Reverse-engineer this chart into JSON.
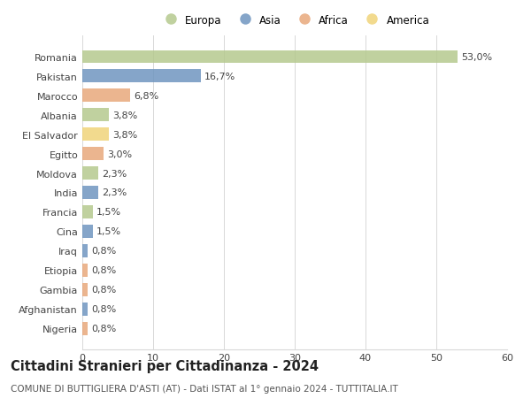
{
  "countries": [
    "Romania",
    "Pakistan",
    "Marocco",
    "Albania",
    "El Salvador",
    "Egitto",
    "Moldova",
    "India",
    "Francia",
    "Cina",
    "Iraq",
    "Etiopia",
    "Gambia",
    "Afghanistan",
    "Nigeria"
  ],
  "values": [
    53.0,
    16.7,
    6.8,
    3.8,
    3.8,
    3.0,
    2.3,
    2.3,
    1.5,
    1.5,
    0.8,
    0.8,
    0.8,
    0.8,
    0.8
  ],
  "labels": [
    "53,0%",
    "16,7%",
    "6,8%",
    "3,8%",
    "3,8%",
    "3,0%",
    "2,3%",
    "2,3%",
    "1,5%",
    "1,5%",
    "0,8%",
    "0,8%",
    "0,8%",
    "0,8%",
    "0,8%"
  ],
  "continents": [
    "Europa",
    "Asia",
    "Africa",
    "Europa",
    "America",
    "Africa",
    "Europa",
    "Asia",
    "Europa",
    "Asia",
    "Asia",
    "Africa",
    "Africa",
    "Asia",
    "Africa"
  ],
  "continent_colors": {
    "Europa": "#b5c98e",
    "Asia": "#7096c0",
    "Africa": "#e8a87c",
    "America": "#f0d47a"
  },
  "legend_order": [
    "Europa",
    "Asia",
    "Africa",
    "America"
  ],
  "title": "Cittadini Stranieri per Cittadinanza - 2024",
  "subtitle": "COMUNE DI BUTTIGLIERA D'ASTI (AT) - Dati ISTAT al 1° gennaio 2024 - TUTTITALIA.IT",
  "xlim": [
    0,
    60
  ],
  "xticks": [
    0,
    10,
    20,
    30,
    40,
    50,
    60
  ],
  "background_color": "#ffffff",
  "grid_color": "#d8d8d8",
  "label_fontsize": 8,
  "tick_fontsize": 8,
  "title_fontsize": 10.5,
  "subtitle_fontsize": 7.5
}
